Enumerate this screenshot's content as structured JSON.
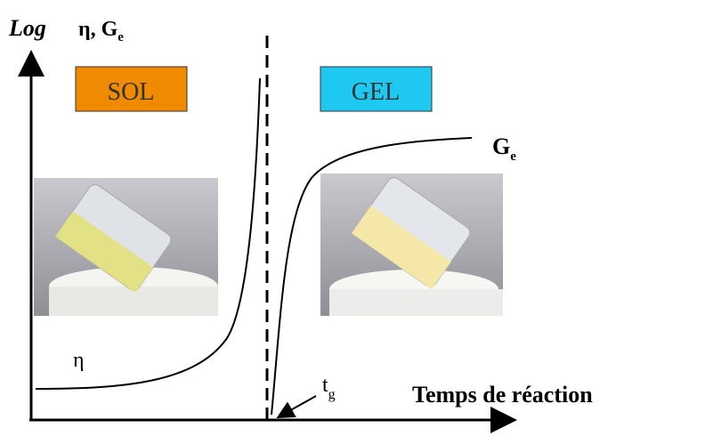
{
  "y_axis": {
    "label": "Log",
    "symbols": "η, G",
    "subscript": "e"
  },
  "x_axis": {
    "label": "Temps de réaction"
  },
  "boxes": [
    {
      "label": "SOL"
    },
    {
      "label": "GEL"
    }
  ],
  "curves": [
    {
      "label": "η"
    },
    {
      "label": "G",
      "subscript": "e"
    }
  ],
  "marker": {
    "label": "t",
    "subscript": "g"
  }
}
